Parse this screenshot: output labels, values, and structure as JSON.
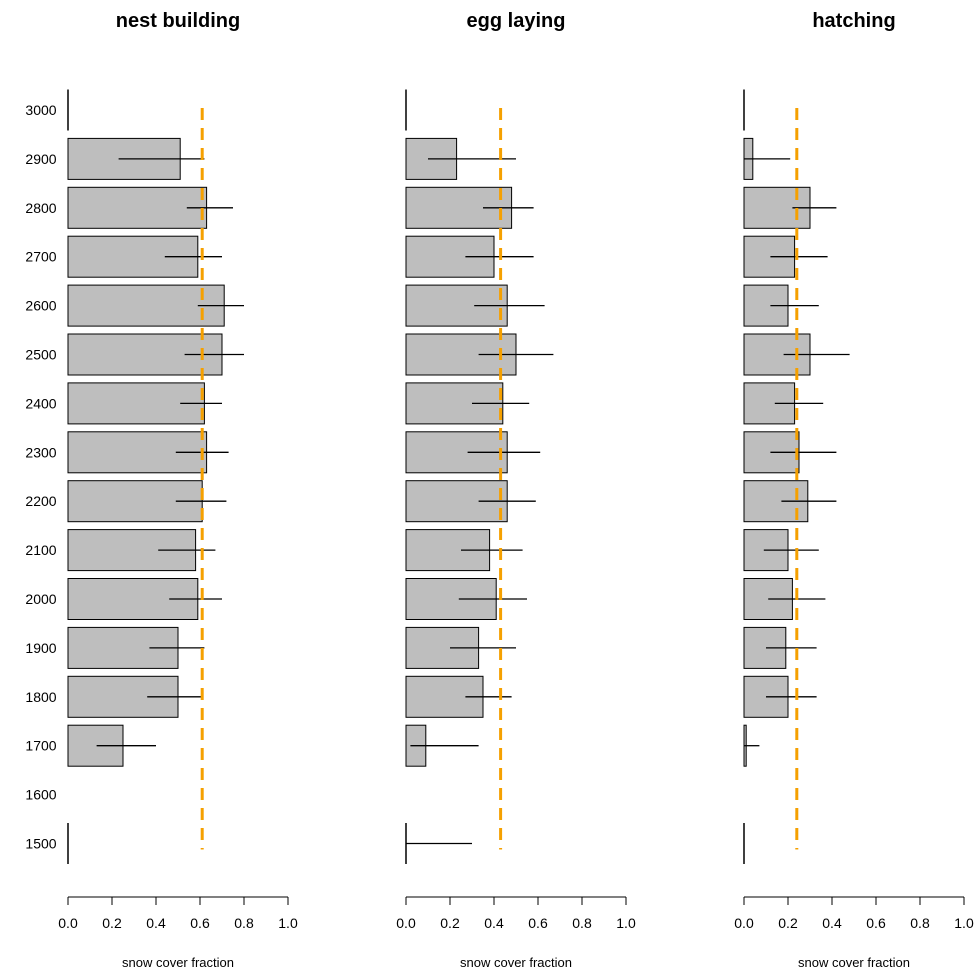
{
  "chart_data": [
    {
      "type": "bar",
      "orientation": "horizontal",
      "title": "nest building",
      "xlabel": "snow cover fraction",
      "xlim": [
        0,
        1
      ],
      "xticks": [
        "0.0",
        "0.2",
        "0.4",
        "0.6",
        "0.8",
        "1.0"
      ],
      "categories": [
        "3000",
        "2900",
        "2800",
        "2700",
        "2600",
        "2500",
        "2400",
        "2300",
        "2200",
        "2100",
        "2000",
        "1900",
        "1800",
        "1700",
        "1600",
        "1500"
      ],
      "values": [
        0,
        0.51,
        0.63,
        0.59,
        0.71,
        0.7,
        0.62,
        0.63,
        0.61,
        0.58,
        0.59,
        0.5,
        0.5,
        0.25,
        null,
        0
      ],
      "error_low": [
        0,
        0.23,
        0.54,
        0.44,
        0.59,
        0.53,
        0.51,
        0.49,
        0.49,
        0.41,
        0.46,
        0.37,
        0.36,
        0.13,
        null,
        0
      ],
      "error_high": [
        0,
        0.62,
        0.75,
        0.7,
        0.8,
        0.8,
        0.7,
        0.73,
        0.72,
        0.67,
        0.7,
        0.62,
        0.61,
        0.4,
        null,
        0
      ],
      "reference_line": 0.61,
      "reference_color": "#f5a000",
      "bar_color": "#bebebe"
    },
    {
      "type": "bar",
      "orientation": "horizontal",
      "title": "egg laying",
      "xlabel": "snow cover fraction",
      "xlim": [
        0,
        1
      ],
      "xticks": [
        "0.0",
        "0.2",
        "0.4",
        "0.6",
        "0.8",
        "1.0"
      ],
      "categories": [
        "3000",
        "2900",
        "2800",
        "2700",
        "2600",
        "2500",
        "2400",
        "2300",
        "2200",
        "2100",
        "2000",
        "1900",
        "1800",
        "1700",
        "1600",
        "1500"
      ],
      "values": [
        0,
        0.23,
        0.48,
        0.4,
        0.46,
        0.5,
        0.44,
        0.46,
        0.46,
        0.38,
        0.41,
        0.33,
        0.35,
        0.09,
        null,
        0
      ],
      "error_low": [
        0,
        0.1,
        0.35,
        0.27,
        0.31,
        0.33,
        0.3,
        0.28,
        0.33,
        0.25,
        0.24,
        0.2,
        0.27,
        0.02,
        null,
        0
      ],
      "error_high": [
        0,
        0.5,
        0.58,
        0.58,
        0.63,
        0.67,
        0.56,
        0.61,
        0.59,
        0.53,
        0.55,
        0.5,
        0.48,
        0.33,
        null,
        0.3
      ],
      "reference_line": 0.43,
      "reference_color": "#f5a000",
      "bar_color": "#bebebe"
    },
    {
      "type": "bar",
      "orientation": "horizontal",
      "title": "hatching",
      "xlabel": "snow cover fraction",
      "xlim": [
        0,
        1
      ],
      "xticks": [
        "0.0",
        "0.2",
        "0.4",
        "0.6",
        "0.8",
        "1.0"
      ],
      "categories": [
        "3000",
        "2900",
        "2800",
        "2700",
        "2600",
        "2500",
        "2400",
        "2300",
        "2200",
        "2100",
        "2000",
        "1900",
        "1800",
        "1700",
        "1600",
        "1500"
      ],
      "values": [
        0,
        0.04,
        0.3,
        0.23,
        0.2,
        0.3,
        0.23,
        0.25,
        0.29,
        0.2,
        0.22,
        0.19,
        0.2,
        0.01,
        null,
        0
      ],
      "error_low": [
        0,
        0.0,
        0.22,
        0.12,
        0.12,
        0.18,
        0.14,
        0.12,
        0.17,
        0.09,
        0.11,
        0.1,
        0.1,
        0.0,
        null,
        0
      ],
      "error_high": [
        0,
        0.21,
        0.42,
        0.38,
        0.34,
        0.48,
        0.36,
        0.42,
        0.42,
        0.34,
        0.37,
        0.33,
        0.33,
        0.07,
        null,
        0
      ],
      "reference_line": 0.24,
      "reference_color": "#f5a000",
      "bar_color": "#bebebe"
    }
  ]
}
